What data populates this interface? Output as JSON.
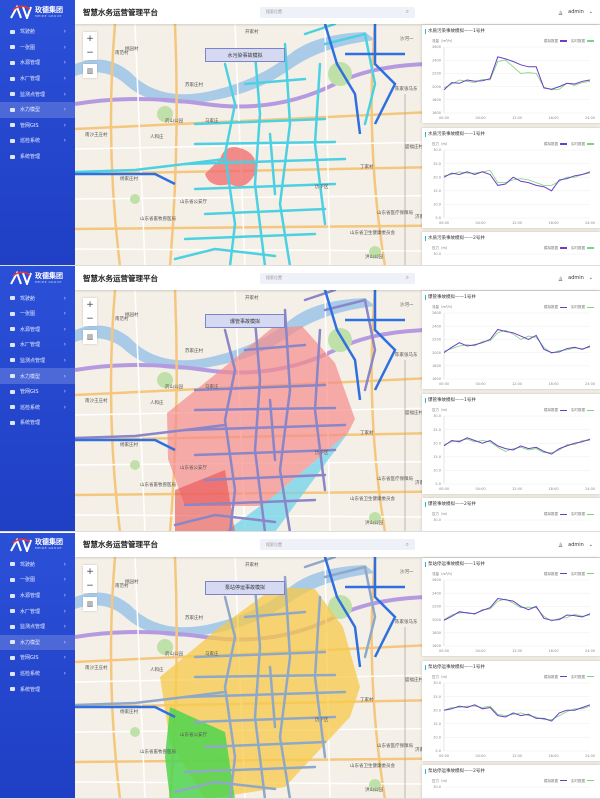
{
  "brand": {
    "name": "玫德集团",
    "sub": "MEIDE GROUP",
    "accent": "#2b50d8"
  },
  "header": {
    "title": "智慧水务运营管理平台",
    "search_placeholder": "搜索位置",
    "user": "admin"
  },
  "sidebar": {
    "items": [
      {
        "label": "驾驶舱",
        "chevron": true
      },
      {
        "label": "一张图",
        "chevron": true
      },
      {
        "label": "水源管理",
        "chevron": true
      },
      {
        "label": "水厂管理",
        "chevron": true
      },
      {
        "label": "监测点管理",
        "chevron": true
      },
      {
        "label": "水力模型",
        "chevron": true,
        "active": true
      },
      {
        "label": "管网GIS",
        "chevron": true
      },
      {
        "label": "巡检系统",
        "chevron": true
      },
      {
        "label": "系统管理",
        "chevron": false
      }
    ]
  },
  "map": {
    "labels": [
      "南范村",
      "桃园村",
      "苏家庄村",
      "开家村",
      "药山公园",
      "马家庄",
      "人和庄",
      "南沙王庄村",
      "杨家庄村",
      "山东省公安厅",
      "山东省畜牧兽医局",
      "沙河一",
      "陈家张马东",
      "盛福庄村",
      "丁家村",
      "山东省医疗保障局",
      "山东省卫生健康委员会",
      "洪山公园",
      "济南",
      "历下区"
    ],
    "zoom_in": "+",
    "zoom_out": "−"
  },
  "legend": {
    "sim": "模拟数据",
    "real": "实时数据",
    "sim_color": "#6a3fc4",
    "real_color": "#7bd47b"
  },
  "panels": [
    {
      "scenario": "水污染事故模拟",
      "overlay": "pollution",
      "charts": [
        {
          "title": "水质污染事故模拟——1号井",
          "unit": "流量（m³/h）",
          "yticks": [
            "2600",
            "2400",
            "2200",
            "2000",
            "1800",
            "1600"
          ],
          "ylim": [
            1600,
            2600
          ],
          "xticks": [
            "00:00",
            "04:00",
            "12:00",
            "18:00",
            "24:00"
          ],
          "sim": [
            1950,
            2060,
            2050,
            2100,
            2080,
            2090,
            2120,
            2450,
            2420,
            2380,
            2330,
            2300,
            2300,
            1980,
            1960,
            2000,
            2050,
            2040,
            2080,
            2100
          ],
          "real": [
            1980,
            2040,
            2100,
            2080,
            2060,
            2110,
            2100,
            2380,
            2400,
            2300,
            2200,
            2210,
            2200,
            1990,
            1950,
            1960,
            2050,
            2020,
            2060,
            2080
          ]
        },
        {
          "title": "水质污染事故模拟——1号井",
          "unit": "压力（m）",
          "yticks": [
            "30.0",
            "25.0",
            "20.0",
            "15.0",
            "10.0",
            "5.0"
          ],
          "ylim": [
            5,
            30
          ],
          "xticks": [
            "00:00",
            "04:00",
            "12:00",
            "18:00",
            "24:00"
          ],
          "sim": [
            20,
            21.5,
            21,
            22,
            21,
            22,
            21,
            17,
            17.5,
            20,
            18.5,
            18,
            17,
            16.5,
            15,
            19,
            19.5,
            20.5,
            21,
            22
          ],
          "real": [
            20.5,
            21,
            22,
            21.5,
            21.5,
            22,
            22.5,
            18,
            18,
            19,
            19.5,
            19,
            18,
            17,
            17,
            18.5,
            20,
            20,
            21,
            21.5
          ]
        },
        {
          "title": "水质污染事故模拟——2号井",
          "unit": "压力（m）",
          "yticks": [
            "30.0"
          ]
        }
      ]
    },
    {
      "scenario": "爆管事故模拟",
      "overlay": "burst",
      "charts": [
        {
          "title": "爆管事故模拟——1号井",
          "unit": "流量（m³/h）",
          "yticks": [
            "2600",
            "2400",
            "2200",
            "2000",
            "1800",
            "1600"
          ],
          "ylim": [
            1600,
            2600
          ],
          "xticks": [
            "00:00",
            "04:00",
            "12:00",
            "18:00",
            "24:00"
          ],
          "sim": [
            2000,
            2080,
            2150,
            2100,
            2120,
            2150,
            2200,
            2350,
            2320,
            2300,
            2250,
            2200,
            2260,
            2050,
            2000,
            2010,
            2060,
            2080,
            2050,
            2100
          ],
          "real": [
            2020,
            2060,
            2100,
            2120,
            2100,
            2170,
            2180,
            2300,
            2340,
            2280,
            2200,
            2250,
            2230,
            2080,
            1990,
            2030,
            2040,
            2070,
            2060,
            2080
          ]
        },
        {
          "title": "爆管事故模拟——1号井",
          "unit": "压力（m）",
          "yticks": [
            "30.0",
            "25.0",
            "20.0",
            "15.0",
            "10.0",
            "5.0"
          ],
          "ylim": [
            5,
            30
          ],
          "xticks": [
            "00:00",
            "04:00",
            "12:00",
            "18:00",
            "24:00"
          ],
          "sim": [
            19,
            21,
            20.5,
            22,
            21,
            20,
            21,
            19,
            18,
            17.5,
            19,
            18,
            18.5,
            17,
            16,
            18,
            19,
            20,
            20.5,
            21.5
          ],
          "real": [
            19.5,
            20.5,
            21,
            21.5,
            20.5,
            21,
            20.5,
            18.5,
            17,
            18,
            18.5,
            17.5,
            18,
            16.5,
            16.5,
            17.5,
            19.5,
            19.5,
            21,
            21
          ]
        },
        {
          "title": "爆管事故模拟——2号井",
          "unit": "压力（m）",
          "yticks": [
            "30.0"
          ]
        }
      ]
    },
    {
      "scenario": "泵站停运事故模拟",
      "overlay": "pump",
      "charts": [
        {
          "title": "泵站停运事故模拟——1号井",
          "unit": "流量（m³/h）",
          "yticks": [
            "2600",
            "2400",
            "2200",
            "2000",
            "1800",
            "1600"
          ],
          "ylim": [
            1600,
            2600
          ],
          "xticks": [
            "00:00",
            "04:00",
            "12:00",
            "18:00",
            "24:00"
          ],
          "sim": [
            1990,
            2050,
            2120,
            2100,
            2090,
            2140,
            2180,
            2320,
            2300,
            2280,
            2200,
            2150,
            2200,
            2020,
            1990,
            2000,
            2070,
            2060,
            2040,
            2090
          ],
          "real": [
            2000,
            2070,
            2100,
            2110,
            2080,
            2150,
            2160,
            2280,
            2310,
            2250,
            2180,
            2190,
            2180,
            2050,
            1980,
            2020,
            2030,
            2080,
            2050,
            2070
          ]
        },
        {
          "title": "泵站停运事故模拟——1号井",
          "unit": "压力（m）",
          "yticks": [
            "30.0",
            "25.0",
            "20.0",
            "15.0",
            "10.0",
            "5.0"
          ],
          "ylim": [
            5,
            30
          ],
          "xticks": [
            "00:00",
            "04:00",
            "12:00",
            "18:00",
            "24:00"
          ],
          "sim": [
            20,
            20.5,
            21.5,
            21,
            22,
            20.5,
            21,
            18,
            17.5,
            19,
            18,
            18.5,
            17,
            17,
            16,
            19,
            20,
            20,
            21,
            22
          ],
          "real": [
            20,
            21,
            21,
            21.5,
            21.5,
            21,
            21.5,
            18.5,
            18,
            18.5,
            19,
            18,
            17.5,
            16.5,
            16.5,
            18,
            19.5,
            20.5,
            20.5,
            21.5
          ]
        },
        {
          "title": "泵站停运事故模拟——2号井",
          "unit": "压力（m）",
          "yticks": [
            "30.0"
          ]
        }
      ]
    }
  ]
}
